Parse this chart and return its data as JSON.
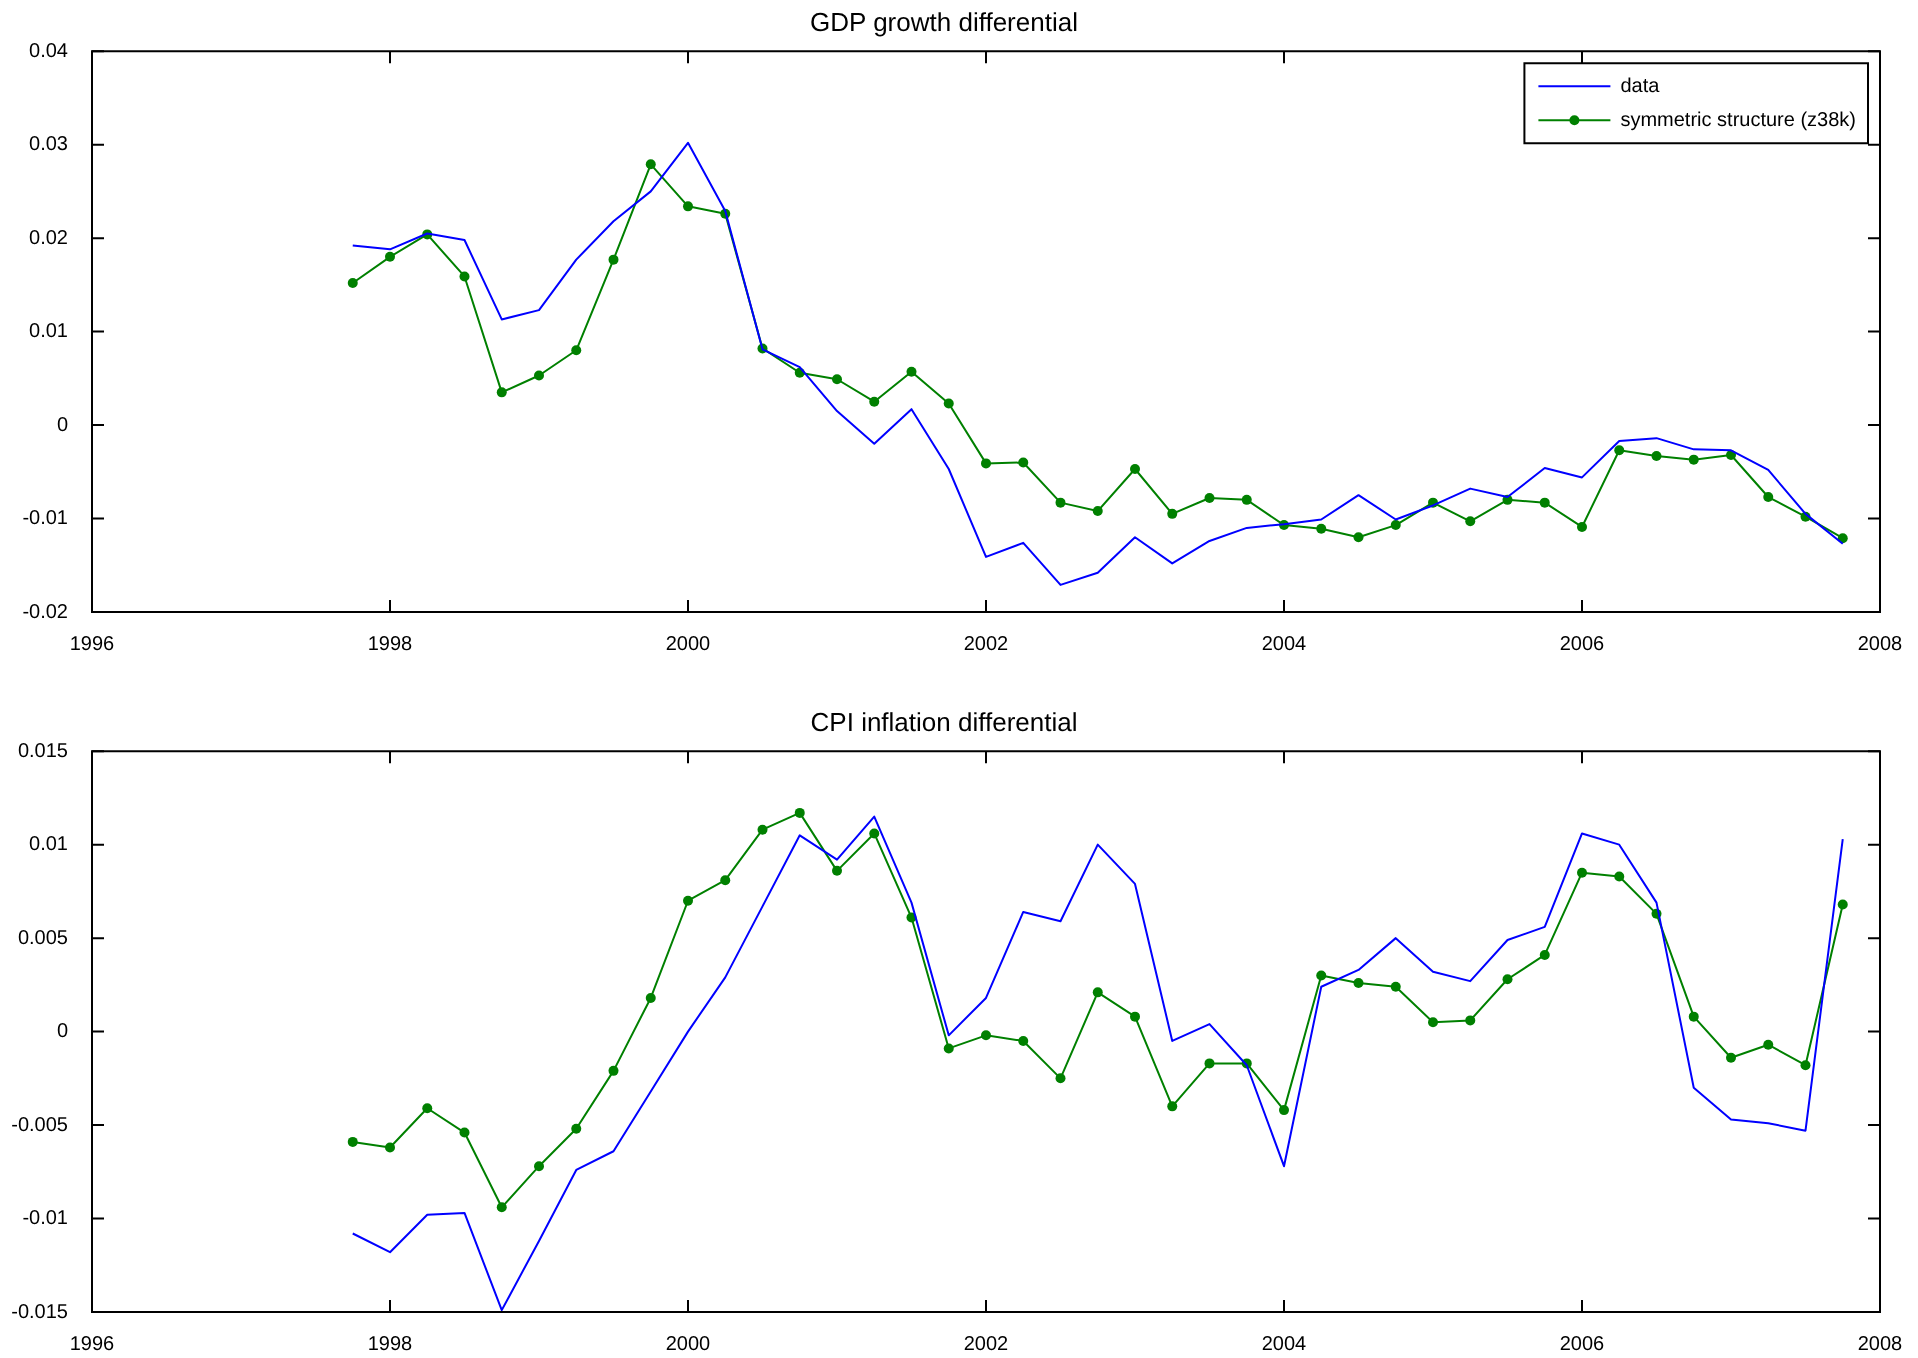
{
  "chart_data": [
    {
      "type": "line",
      "title": "GDP growth differential",
      "legend": "top right",
      "xlim": [
        1996,
        2008
      ],
      "xticks": [
        1996,
        1998,
        2000,
        2002,
        2004,
        2006,
        2008
      ],
      "ylim": [
        -0.02,
        0.04
      ],
      "yticks": [
        -0.02,
        -0.01,
        0,
        0.01,
        0.02,
        0.03,
        0.04
      ],
      "x": [
        1997.75,
        1998,
        1998.25,
        1998.5,
        1998.75,
        1999,
        1999.25,
        1999.5,
        1999.75,
        2000,
        2000.25,
        2000.5,
        2000.75,
        2001,
        2001.25,
        2001.5,
        2001.75,
        2002,
        2002.25,
        2002.5,
        2002.75,
        2003,
        2003.25,
        2003.5,
        2003.75,
        2004,
        2004.25,
        2004.5,
        2004.75,
        2005,
        2005.25,
        2005.5,
        2005.75,
        2006,
        2006.25,
        2006.5,
        2006.75,
        2007,
        2007.25,
        2007.5,
        2007.75
      ],
      "series": [
        {
          "name": "data",
          "color": "#0000ff",
          "marker": "none",
          "values": [
            0.0192,
            0.0188,
            0.0205,
            0.0198,
            0.0113,
            0.0123,
            0.0177,
            0.0218,
            0.025,
            0.0302,
            0.0229,
            0.0081,
            0.0062,
            0.0015,
            -0.002,
            0.0017,
            -0.0047,
            -0.0141,
            -0.0126,
            -0.0171,
            -0.0158,
            -0.012,
            -0.0148,
            -0.0124,
            -0.011,
            -0.0106,
            -0.0101,
            -0.0075,
            -0.0101,
            -0.0086,
            -0.0068,
            -0.0077,
            -0.0046,
            -0.0056,
            -0.0017,
            -0.0014,
            -0.0026,
            -0.0027,
            -0.0048,
            -0.0095,
            -0.0127
          ]
        },
        {
          "name": "symmetric structure (z38k)",
          "color": "#008000",
          "marker": "circle",
          "values": [
            0.0152,
            0.018,
            0.0204,
            0.0159,
            0.0035,
            0.0053,
            0.008,
            0.0177,
            0.0279,
            0.0234,
            0.0226,
            0.0082,
            0.0056,
            0.0049,
            0.0025,
            0.0057,
            0.0023,
            -0.0041,
            -0.004,
            -0.0083,
            -0.0092,
            -0.0047,
            -0.0095,
            -0.0078,
            -0.008,
            -0.0107,
            -0.0111,
            -0.012,
            -0.0107,
            -0.0083,
            -0.0103,
            -0.008,
            -0.0083,
            -0.0109,
            -0.0027,
            -0.0033,
            -0.0037,
            -0.0032,
            -0.0077,
            -0.0098,
            -0.0121
          ]
        }
      ]
    },
    {
      "type": "line",
      "title": "CPI inflation differential",
      "xlim": [
        1996,
        2008
      ],
      "xticks": [
        1996,
        1998,
        2000,
        2002,
        2004,
        2006,
        2008
      ],
      "ylim": [
        -0.015,
        0.015
      ],
      "yticks": [
        -0.015,
        -0.01,
        -0.005,
        0,
        0.005,
        0.01,
        0.015
      ],
      "x": [
        1997.75,
        1998,
        1998.25,
        1998.5,
        1998.75,
        1999,
        1999.25,
        1999.5,
        1999.75,
        2000,
        2000.25,
        2000.5,
        2000.75,
        2001,
        2001.25,
        2001.5,
        2001.75,
        2002,
        2002.25,
        2002.5,
        2002.75,
        2003,
        2003.25,
        2003.5,
        2003.75,
        2004,
        2004.25,
        2004.5,
        2004.75,
        2005,
        2005.25,
        2005.5,
        2005.75,
        2006,
        2006.25,
        2006.5,
        2006.75,
        2007,
        2007.25,
        2007.5,
        2007.75
      ],
      "series": [
        {
          "color": "#0000ff",
          "marker": "none",
          "values": [
            -0.0108,
            -0.0118,
            -0.0098,
            -0.0097,
            -0.0149,
            -0.0112,
            -0.0074,
            -0.0064,
            -0.0032,
            0,
            0.0029,
            0.0067,
            0.0105,
            0.0092,
            0.0115,
            0.0069,
            -0.0002,
            0.0018,
            0.0064,
            0.0059,
            0.01,
            0.0079,
            -0.0005,
            0.0004,
            -0.0018,
            -0.0072,
            0.0024,
            0.0033,
            0.005,
            0.0032,
            0.0027,
            0.0049,
            0.0056,
            0.0106,
            0.01,
            0.0069,
            -0.003,
            -0.0047,
            -0.0049,
            -0.0053,
            0.0103
          ]
        },
        {
          "color": "#008000",
          "marker": "circle",
          "values": [
            -0.0059,
            -0.0062,
            -0.0041,
            -0.0054,
            -0.0094,
            -0.0072,
            -0.0052,
            -0.0021,
            0.0018,
            0.007,
            0.0081,
            0.0108,
            0.0117,
            0.0086,
            0.0106,
            0.0061,
            -0.0009,
            -0.0002,
            -0.0005,
            -0.0025,
            0.0021,
            0.0008,
            -0.004,
            -0.0017,
            -0.0017,
            -0.0042,
            0.003,
            0.0026,
            0.0024,
            0.0005,
            0.0006,
            0.0028,
            0.0041,
            0.0085,
            0.0083,
            0.0063,
            0.0008,
            -0.0014,
            -0.0007,
            -0.0018,
            0.0068
          ]
        }
      ]
    }
  ]
}
